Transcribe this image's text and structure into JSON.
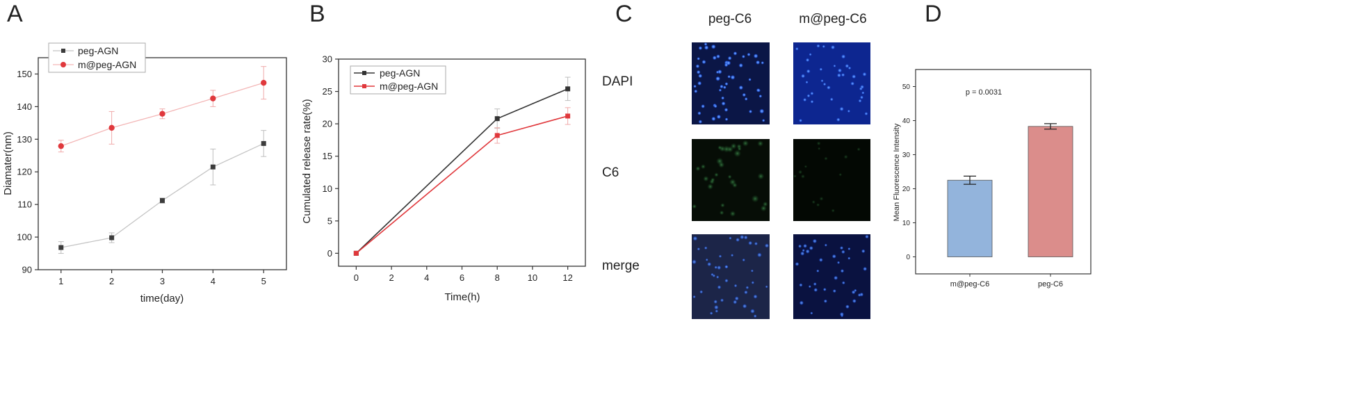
{
  "panels": {
    "a": {
      "letter": "A"
    },
    "b": {
      "letter": "B"
    },
    "c": {
      "letter": "C",
      "col_labels": [
        "peg-C6",
        "m@peg-C6"
      ],
      "row_labels": [
        "DAPI",
        "C6",
        "merge"
      ]
    },
    "d": {
      "letter": "D"
    }
  },
  "chart_data": [
    {
      "type": "line",
      "xlabel": "time(day)",
      "ylabel": "Diamater(nm)",
      "xlim": [
        0.55,
        5.45
      ],
      "ylim": [
        90,
        155
      ],
      "xticks": [
        1,
        2,
        3,
        4,
        5
      ],
      "yticks": [
        90,
        100,
        110,
        120,
        130,
        140,
        150
      ],
      "legend_position": "top-left",
      "x": [
        1,
        2,
        3,
        4,
        5
      ],
      "series": [
        {
          "name": "peg-AGN",
          "color": "#3c3c3c",
          "line_color": "#c4c4c4",
          "marker": "square",
          "values": [
            96.8,
            99.8,
            111.2,
            121.5,
            128.7
          ],
          "errors": [
            1.8,
            1.5,
            0.8,
            5.5,
            4.0
          ]
        },
        {
          "name": "m@peg-AGN",
          "color": "#e0383c",
          "line_color": "#f3b6b6",
          "marker": "circle",
          "values": [
            127.9,
            133.5,
            137.8,
            142.5,
            147.3
          ],
          "errors": [
            1.8,
            5.0,
            1.5,
            2.5,
            5.0
          ]
        }
      ]
    },
    {
      "type": "line",
      "xlabel": "Time(h)",
      "ylabel": "Cumulated release rate(%)",
      "xlim": [
        -1,
        13
      ],
      "ylim": [
        -2,
        30
      ],
      "xticks": [
        0,
        2,
        4,
        6,
        8,
        10,
        12
      ],
      "yticks": [
        0,
        5,
        10,
        15,
        20,
        25,
        30
      ],
      "legend_position": "top-left",
      "x": [
        0,
        8,
        12
      ],
      "series": [
        {
          "name": "peg-AGN",
          "color": "#333333",
          "line_color": "#333333",
          "marker": "square",
          "values": [
            0,
            20.8,
            25.4
          ],
          "errors": [
            0,
            1.5,
            1.8
          ]
        },
        {
          "name": "m@peg-AGN",
          "color": "#e0383c",
          "line_color": "#e0383c",
          "marker": "square",
          "values": [
            0,
            18.2,
            21.2
          ],
          "errors": [
            0,
            1.2,
            1.3
          ]
        }
      ]
    },
    {
      "type": "bar",
      "ylabel": "Mean Fluorescence Intensity",
      "ylim": [
        -5,
        55
      ],
      "yticks": [
        0,
        10,
        20,
        30,
        40,
        50
      ],
      "categories": [
        "m@peg-C6",
        "peg-C6"
      ],
      "values": [
        22.5,
        38.3
      ],
      "errors": [
        1.2,
        0.8
      ],
      "colors": [
        "#93b4dc",
        "#db8d8b"
      ],
      "annotation": "p = 0.0031"
    }
  ]
}
